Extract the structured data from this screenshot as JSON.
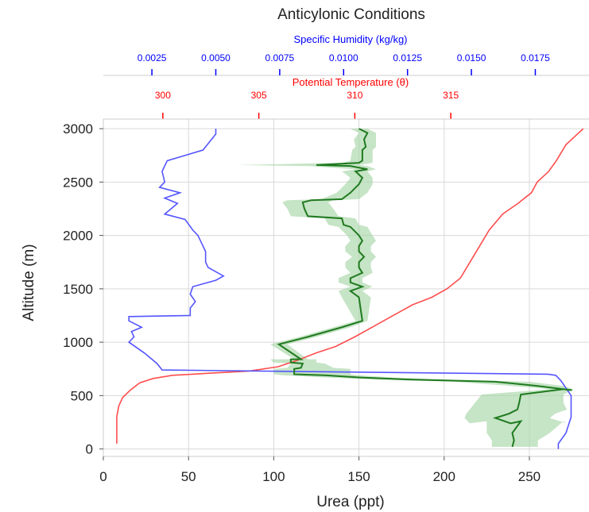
{
  "chart_data": {
    "type": "line",
    "title": "Anticylonic Conditions",
    "xlabel": "Urea (ppt)",
    "ylabel": "Altitude (m)",
    "xlim": [
      0,
      285
    ],
    "ylim": [
      -70,
      3090
    ],
    "xticks": [
      0,
      50,
      100,
      150,
      200,
      250
    ],
    "yticks": [
      0,
      500,
      1000,
      1500,
      2000,
      2500,
      3000
    ],
    "grid": true,
    "colors": {
      "urea_line": "#1f7a1f",
      "urea_band": "#a8d5a8",
      "theta": "#ff4d4d",
      "humidity": "#5555ff"
    },
    "humidity_axis": {
      "label": "Specific Humidity (kg/kg)",
      "color": "#0000ff",
      "xlim": [
        0.0006,
        0.0196
      ],
      "ticks": [
        "0.0025",
        "0.0050",
        "0.0075",
        "0.0100",
        "0.0125",
        "0.0150",
        "0.0175"
      ]
    },
    "theta_axis": {
      "label": "Potential Temperature (θ)",
      "color": "#ff0000",
      "xlim": [
        296.9,
        322.2
      ],
      "ticks": [
        "300",
        "305",
        "310",
        "315"
      ]
    },
    "urea_mean": [
      [
        240,
        20
      ],
      [
        241,
        80
      ],
      [
        240,
        150
      ],
      [
        245,
        260
      ],
      [
        239,
        240
      ],
      [
        230,
        290
      ],
      [
        238,
        330
      ],
      [
        243,
        370
      ],
      [
        244,
        430
      ],
      [
        245,
        510
      ],
      [
        270,
        560
      ],
      [
        275,
        550
      ],
      [
        255,
        590
      ],
      [
        230,
        630
      ],
      [
        180,
        650
      ],
      [
        150,
        670
      ],
      [
        130,
        690
      ],
      [
        112,
        700
      ],
      [
        112,
        750
      ],
      [
        116,
        760
      ],
      [
        117,
        800
      ],
      [
        110,
        810
      ],
      [
        110,
        840
      ],
      [
        116,
        840
      ],
      [
        103,
        980
      ],
      [
        120,
        1050
      ],
      [
        140,
        1140
      ],
      [
        152,
        1200
      ],
      [
        150,
        1420
      ],
      [
        145,
        1480
      ],
      [
        152,
        1520
      ],
      [
        145,
        1560
      ],
      [
        145,
        1600
      ],
      [
        152,
        1650
      ],
      [
        150,
        1700
      ],
      [
        150,
        1750
      ],
      [
        153,
        1800
      ],
      [
        150,
        1850
      ],
      [
        150,
        1900
      ],
      [
        152,
        1950
      ],
      [
        150,
        2000
      ],
      [
        145,
        2080
      ],
      [
        141,
        2100
      ],
      [
        140,
        2160
      ],
      [
        120,
        2180
      ],
      [
        118,
        2250
      ],
      [
        117,
        2310
      ],
      [
        122,
        2330
      ],
      [
        140,
        2340
      ],
      [
        145,
        2400
      ],
      [
        150,
        2480
      ],
      [
        152,
        2540
      ],
      [
        148,
        2600
      ],
      [
        155,
        2620
      ],
      [
        145,
        2650
      ],
      [
        125,
        2660
      ],
      [
        150,
        2680
      ],
      [
        152,
        2700
      ],
      [
        152,
        2800
      ],
      [
        154,
        2830
      ],
      [
        153,
        2900
      ],
      [
        155,
        2960
      ],
      [
        150,
        3000
      ]
    ],
    "urea_band_upper": [
      [
        255,
        20
      ],
      [
        255,
        80
      ],
      [
        262,
        150
      ],
      [
        270,
        260
      ],
      [
        272,
        240
      ],
      [
        262,
        290
      ],
      [
        265,
        330
      ],
      [
        272,
        370
      ],
      [
        270,
        430
      ],
      [
        270,
        510
      ],
      [
        276,
        560
      ],
      [
        278,
        550
      ],
      [
        270,
        590
      ],
      [
        250,
        630
      ],
      [
        200,
        650
      ],
      [
        170,
        670
      ],
      [
        150,
        690
      ],
      [
        145,
        700
      ],
      [
        145,
        750
      ],
      [
        135,
        760
      ],
      [
        130,
        800
      ],
      [
        125,
        810
      ],
      [
        125,
        840
      ],
      [
        120,
        840
      ],
      [
        108,
        980
      ],
      [
        125,
        1050
      ],
      [
        145,
        1140
      ],
      [
        155,
        1200
      ],
      [
        157,
        1420
      ],
      [
        152,
        1480
      ],
      [
        158,
        1520
      ],
      [
        152,
        1560
      ],
      [
        152,
        1600
      ],
      [
        158,
        1650
      ],
      [
        157,
        1700
      ],
      [
        157,
        1750
      ],
      [
        160,
        1800
      ],
      [
        157,
        1850
      ],
      [
        157,
        1900
      ],
      [
        160,
        1950
      ],
      [
        158,
        2000
      ],
      [
        155,
        2080
      ],
      [
        150,
        2100
      ],
      [
        148,
        2160
      ],
      [
        138,
        2180
      ],
      [
        135,
        2250
      ],
      [
        132,
        2310
      ],
      [
        135,
        2330
      ],
      [
        150,
        2340
      ],
      [
        155,
        2400
      ],
      [
        158,
        2480
      ],
      [
        158,
        2540
      ],
      [
        155,
        2600
      ],
      [
        160,
        2620
      ],
      [
        155,
        2650
      ],
      [
        150,
        2660
      ],
      [
        158,
        2680
      ],
      [
        158,
        2700
      ],
      [
        158,
        2800
      ],
      [
        160,
        2830
      ],
      [
        160,
        2900
      ],
      [
        160,
        2960
      ],
      [
        155,
        3000
      ]
    ],
    "urea_band_lower": [
      [
        228,
        20
      ],
      [
        228,
        80
      ],
      [
        225,
        150
      ],
      [
        225,
        260
      ],
      [
        215,
        240
      ],
      [
        212,
        290
      ],
      [
        213,
        330
      ],
      [
        215,
        370
      ],
      [
        218,
        430
      ],
      [
        222,
        510
      ],
      [
        262,
        560
      ],
      [
        270,
        550
      ],
      [
        240,
        590
      ],
      [
        205,
        630
      ],
      [
        160,
        650
      ],
      [
        130,
        670
      ],
      [
        105,
        690
      ],
      [
        100,
        700
      ],
      [
        100,
        750
      ],
      [
        108,
        760
      ],
      [
        110,
        800
      ],
      [
        100,
        810
      ],
      [
        98,
        840
      ],
      [
        112,
        840
      ],
      [
        98,
        980
      ],
      [
        115,
        1050
      ],
      [
        135,
        1140
      ],
      [
        148,
        1200
      ],
      [
        140,
        1420
      ],
      [
        138,
        1480
      ],
      [
        145,
        1520
      ],
      [
        138,
        1560
      ],
      [
        138,
        1600
      ],
      [
        145,
        1650
      ],
      [
        142,
        1700
      ],
      [
        142,
        1750
      ],
      [
        146,
        1800
      ],
      [
        142,
        1850
      ],
      [
        142,
        1900
      ],
      [
        145,
        1950
      ],
      [
        143,
        2000
      ],
      [
        138,
        2080
      ],
      [
        132,
        2100
      ],
      [
        130,
        2160
      ],
      [
        110,
        2180
      ],
      [
        108,
        2250
      ],
      [
        105,
        2310
      ],
      [
        108,
        2330
      ],
      [
        128,
        2340
      ],
      [
        137,
        2400
      ],
      [
        142,
        2480
      ],
      [
        145,
        2540
      ],
      [
        140,
        2600
      ],
      [
        148,
        2620
      ],
      [
        120,
        2650
      ],
      [
        78,
        2660
      ],
      [
        140,
        2680
      ],
      [
        145,
        2700
      ],
      [
        146,
        2800
      ],
      [
        148,
        2830
      ],
      [
        147,
        2900
      ],
      [
        150,
        2960
      ],
      [
        145,
        3000
      ]
    ],
    "theta": [
      [
        297.6,
        50
      ],
      [
        297.6,
        200
      ],
      [
        297.6,
        300
      ],
      [
        297.7,
        400
      ],
      [
        297.9,
        480
      ],
      [
        298.3,
        550
      ],
      [
        298.8,
        620
      ],
      [
        299.5,
        660
      ],
      [
        300.5,
        690
      ],
      [
        302.5,
        710
      ],
      [
        304.5,
        730
      ],
      [
        306.0,
        770
      ],
      [
        307.0,
        830
      ],
      [
        308.0,
        900
      ],
      [
        309.0,
        960
      ],
      [
        310.0,
        1050
      ],
      [
        311.0,
        1150
      ],
      [
        312.0,
        1250
      ],
      [
        313.0,
        1350
      ],
      [
        314.0,
        1420
      ],
      [
        314.8,
        1500
      ],
      [
        315.5,
        1600
      ],
      [
        316.0,
        1750
      ],
      [
        316.5,
        1900
      ],
      [
        317.0,
        2050
      ],
      [
        317.7,
        2200
      ],
      [
        318.5,
        2300
      ],
      [
        319.2,
        2400
      ],
      [
        319.5,
        2500
      ],
      [
        320.1,
        2600
      ],
      [
        320.5,
        2700
      ],
      [
        321.0,
        2850
      ],
      [
        321.6,
        2950
      ],
      [
        321.9,
        3000
      ]
    ],
    "humidity": [
      [
        0.0184,
        0
      ],
      [
        0.0184,
        50
      ],
      [
        0.0187,
        150
      ],
      [
        0.0189,
        300
      ],
      [
        0.0189,
        500
      ],
      [
        0.0185,
        640
      ],
      [
        0.0183,
        690
      ],
      [
        0.018,
        700
      ],
      [
        0.0029,
        740
      ],
      [
        0.0027,
        800
      ],
      [
        0.0022,
        900
      ],
      [
        0.0016,
        1000
      ],
      [
        0.0018,
        1050
      ],
      [
        0.0017,
        1100
      ],
      [
        0.0021,
        1140
      ],
      [
        0.0016,
        1200
      ],
      [
        0.0016,
        1240
      ],
      [
        0.004,
        1250
      ],
      [
        0.004,
        1320
      ],
      [
        0.0042,
        1380
      ],
      [
        0.004,
        1450
      ],
      [
        0.0041,
        1520
      ],
      [
        0.005,
        1580
      ],
      [
        0.0053,
        1620
      ],
      [
        0.0047,
        1700
      ],
      [
        0.0046,
        1750
      ],
      [
        0.0046,
        1850
      ],
      [
        0.0044,
        1950
      ],
      [
        0.0043,
        2000
      ],
      [
        0.0041,
        2050
      ],
      [
        0.0038,
        2150
      ],
      [
        0.003,
        2200
      ],
      [
        0.0035,
        2300
      ],
      [
        0.003,
        2350
      ],
      [
        0.0036,
        2400
      ],
      [
        0.0028,
        2450
      ],
      [
        0.003,
        2500
      ],
      [
        0.0029,
        2600
      ],
      [
        0.0031,
        2700
      ],
      [
        0.0038,
        2750
      ],
      [
        0.0045,
        2800
      ],
      [
        0.005,
        2950
      ],
      [
        0.005,
        3000
      ]
    ]
  }
}
